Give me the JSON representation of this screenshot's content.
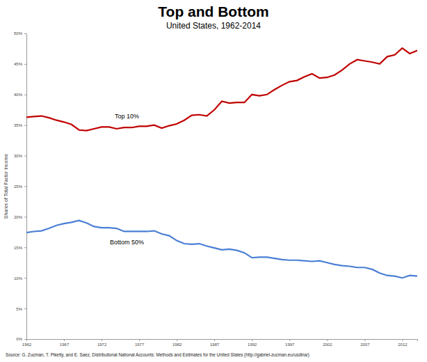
{
  "chart_data": {
    "type": "line",
    "title": "Top and Bottom",
    "subtitle": "United States, 1962-2014",
    "y_label": "Shares of Total Factor Income",
    "source": "Source: G. Zucman, T. Piketty, and E. Saez, Distributional National Accounts: Methods and Estimates for the United States (http://gabriel-zucman.eu/usdina/)",
    "x": [
      1962,
      1963,
      1964,
      1965,
      1966,
      1967,
      1968,
      1969,
      1970,
      1971,
      1972,
      1973,
      1974,
      1975,
      1976,
      1977,
      1978,
      1979,
      1980,
      1981,
      1982,
      1983,
      1984,
      1985,
      1986,
      1987,
      1988,
      1989,
      1990,
      1991,
      1992,
      1993,
      1994,
      1995,
      1996,
      1997,
      1998,
      1999,
      2000,
      2001,
      2002,
      2003,
      2004,
      2005,
      2006,
      2007,
      2008,
      2009,
      2010,
      2011,
      2012,
      2013,
      2014
    ],
    "series": [
      {
        "name": "Top 10%",
        "color": "#c00000",
        "line_style": "solid",
        "values": [
          36.3,
          36.4,
          36.5,
          36.2,
          35.8,
          35.5,
          35.1,
          34.2,
          34.1,
          34.4,
          34.7,
          34.7,
          34.4,
          34.6,
          34.6,
          34.8,
          34.8,
          35.0,
          34.5,
          34.9,
          35.2,
          35.8,
          36.6,
          36.7,
          36.5,
          37.5,
          38.9,
          38.6,
          38.7,
          38.7,
          40.0,
          39.8,
          40.0,
          40.8,
          41.5,
          42.1,
          42.3,
          42.9,
          43.4,
          42.7,
          42.8,
          43.2,
          44.0,
          45.0,
          45.7,
          45.5,
          45.3,
          45.0,
          46.2,
          46.5,
          47.6,
          46.7,
          47.2
        ]
      },
      {
        "name": "Bottom 50%",
        "color": "#4a7fd4",
        "line_style": "solid",
        "values": [
          17.4,
          17.6,
          17.7,
          18.1,
          18.6,
          18.9,
          19.1,
          19.4,
          19.0,
          18.4,
          18.2,
          18.2,
          18.1,
          17.6,
          17.6,
          17.6,
          17.6,
          17.7,
          17.2,
          16.9,
          16.1,
          15.6,
          15.5,
          15.6,
          15.2,
          14.9,
          14.6,
          14.7,
          14.5,
          14.1,
          13.3,
          13.4,
          13.4,
          13.2,
          13.0,
          12.9,
          12.9,
          12.8,
          12.7,
          12.8,
          12.5,
          12.2,
          12.0,
          11.9,
          11.7,
          11.7,
          11.4,
          10.8,
          10.4,
          10.3,
          10.0,
          10.4,
          10.3
        ]
      }
    ],
    "xlim": [
      1962,
      2014
    ],
    "xticks": [
      1962,
      1967,
      1972,
      1977,
      1982,
      1987,
      1992,
      1997,
      2002,
      2007,
      2012
    ],
    "ylim": [
      0,
      50
    ],
    "yticks": [
      {
        "value": 0,
        "label": "0%"
      },
      {
        "value": 5,
        "label": "5%"
      },
      {
        "value": 10,
        "label": "10%"
      },
      {
        "value": 15,
        "label": "15%"
      },
      {
        "value": 20,
        "label": "20%"
      },
      {
        "value": 25,
        "label": "25%"
      },
      {
        "value": 30,
        "label": "30%"
      },
      {
        "value": 35,
        "label": "35%"
      },
      {
        "value": 40,
        "label": "40%"
      },
      {
        "value": 45,
        "label": "45%"
      },
      {
        "value": 50,
        "label": "50%"
      }
    ],
    "grid": false
  }
}
